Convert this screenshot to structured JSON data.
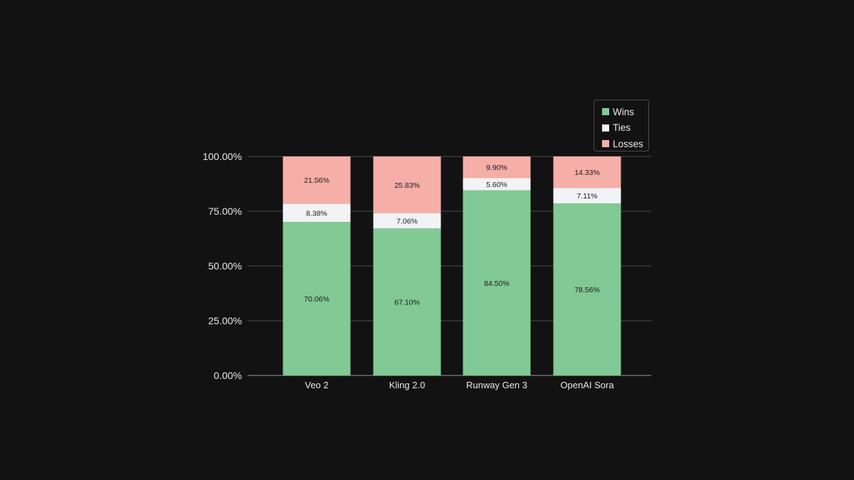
{
  "chart_data": {
    "type": "bar",
    "stacked": true,
    "title": "",
    "xlabel": "",
    "ylabel": "",
    "ylim": [
      0,
      100
    ],
    "y_ticks": [
      0,
      25,
      50,
      75,
      100
    ],
    "y_tick_labels": [
      "0.00%",
      "25.00%",
      "50.00%",
      "75.00%",
      "100.00%"
    ],
    "categories": [
      "Veo 2",
      "Kling 2.0",
      "Runway Gen 3",
      "OpenAI Sora"
    ],
    "series": [
      {
        "name": "Wins",
        "color": "#81c995",
        "values": [
          70.06,
          67.1,
          84.5,
          78.56
        ],
        "labels": [
          "70.06%",
          "67.10%",
          "84.50%",
          "78.56%"
        ]
      },
      {
        "name": "Ties",
        "color": "#f1f3f4",
        "values": [
          8.38,
          7.06,
          5.6,
          7.11
        ],
        "labels": [
          "8.38%",
          "7.06%",
          "5.60%",
          "7.11%"
        ]
      },
      {
        "name": "Losses",
        "color": "#f6aea9",
        "values": [
          21.56,
          25.83,
          9.9,
          14.33
        ],
        "labels": [
          "21.56%",
          "25.83%",
          "9.90%",
          "14.33%"
        ]
      }
    ],
    "legend_position": "top-right",
    "grid": true
  }
}
